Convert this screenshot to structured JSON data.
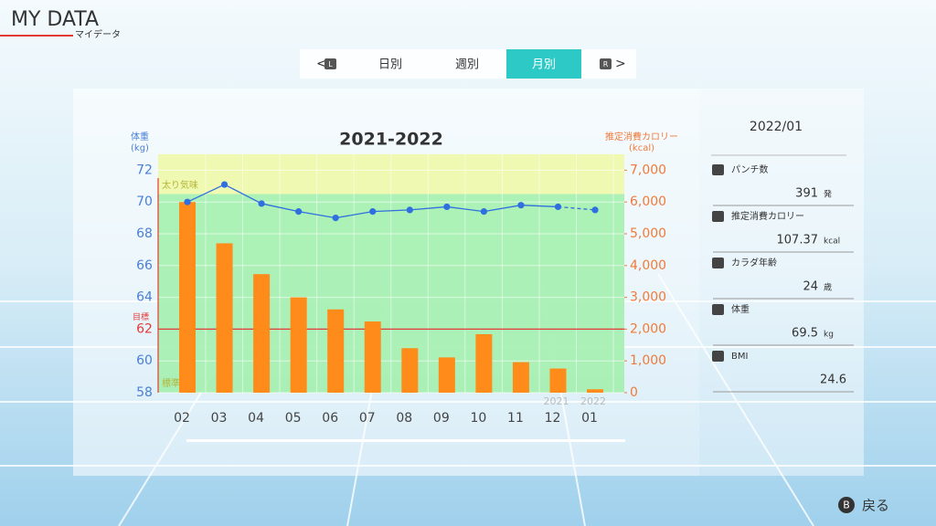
{
  "header": {
    "title": "MY DATA",
    "subtitle": "マイデータ"
  },
  "tabs": {
    "prev": "L",
    "items": [
      "日別",
      "週別",
      "月別"
    ],
    "active": 2,
    "next": "R"
  },
  "chart_data": {
    "type": "bar-line",
    "title": "2021-2022",
    "y_label": "体重\n(kg)",
    "y2_label": "推定消費カロリー\n(kcal)",
    "categories": [
      "02",
      "03",
      "04",
      "05",
      "06",
      "07",
      "08",
      "09",
      "10",
      "11",
      "12",
      "01"
    ],
    "year_labels": [
      null,
      null,
      null,
      null,
      null,
      null,
      null,
      null,
      null,
      null,
      "2021",
      "2022"
    ],
    "series": [
      {
        "name": "推定消費カロリー",
        "type": "bar",
        "axis": "y2",
        "color": "#ff8c1a",
        "values": [
          6000,
          4700,
          3730,
          3000,
          2620,
          2240,
          1400,
          1110,
          1840,
          960,
          760,
          107.37
        ]
      },
      {
        "name": "体重",
        "type": "line",
        "axis": "y",
        "color": "#2f6fe0",
        "dashed_last_segment": true,
        "values": [
          70.0,
          71.1,
          69.9,
          69.4,
          69.0,
          69.4,
          69.5,
          69.7,
          69.4,
          69.8,
          69.7,
          69.5
        ]
      }
    ],
    "ylim": [
      58,
      73
    ],
    "yticks": [
      58,
      60,
      62,
      64,
      66,
      68,
      70,
      72
    ],
    "y2lim": [
      0,
      7500
    ],
    "y2ticks": [
      0,
      {
        "value": 1000,
        "label": "1,000"
      },
      {
        "value": 2000,
        "label": "2,000"
      },
      {
        "value": 3000,
        "label": "3,000"
      },
      {
        "value": 4000,
        "label": "4,000"
      },
      {
        "value": 5000,
        "label": "5,000"
      },
      {
        "value": 6000,
        "label": "6,000"
      },
      {
        "value": 7000,
        "label": "7,000"
      }
    ],
    "zones": [
      {
        "label": "太り気味",
        "from": 70.5,
        "to": 73,
        "color": "#eef8a8"
      },
      {
        "label": "標準",
        "from": 58,
        "to": 70.5,
        "color": "#a4f0ae"
      }
    ],
    "target": {
      "label": "目標",
      "value": 62,
      "color": "#e53935"
    }
  },
  "sidebar": {
    "date": "2022/01",
    "stats": [
      {
        "label": "パンチ数",
        "value": "391",
        "unit": "発"
      },
      {
        "label": "推定消費カロリー",
        "value": "107.37",
        "unit": "kcal"
      },
      {
        "label": "カラダ年齢",
        "value": "24",
        "unit": "歳"
      },
      {
        "label": "体重",
        "value": "69.5",
        "unit": "kg"
      },
      {
        "label": "BMI",
        "value": "24.6"
      }
    ]
  },
  "footer": {
    "button": "B",
    "label": "戻る"
  }
}
